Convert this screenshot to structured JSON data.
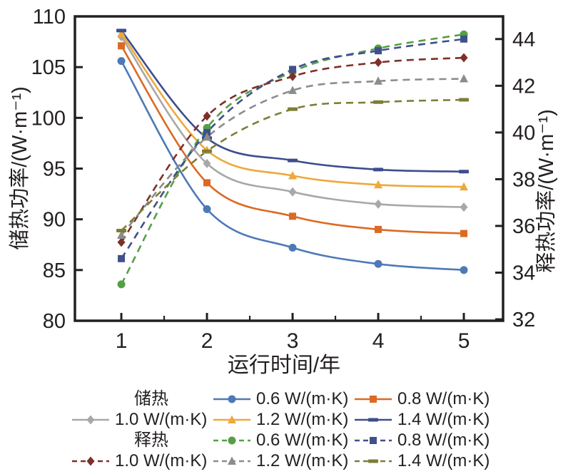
{
  "figure": {
    "background": "#ffffff",
    "axis_color": "#231f20",
    "text_color": "#231f20"
  },
  "chart_data": {
    "type": "line",
    "title": "",
    "x": [
      1,
      2,
      3,
      4,
      5
    ],
    "xlabel": "运行时间/年",
    "xlim": [
      0.458,
      5.458
    ],
    "x_ticks": [
      "1",
      "2",
      "3",
      "4",
      "5"
    ],
    "x_minor_ticks": [
      1.5,
      2.5,
      3.5,
      4.5
    ],
    "grid": false,
    "legend_position": "bottom",
    "axes": {
      "left": {
        "label": "储热功率/(W·m⁻¹)",
        "ticks": [
          80,
          85,
          90,
          95,
          100,
          105,
          110
        ],
        "lim": [
          80,
          110
        ]
      },
      "right": {
        "label": "释热功率/(W·m⁻¹)",
        "ticks": [
          32,
          34,
          36,
          38,
          40,
          42,
          44
        ],
        "lim": [
          31.94,
          44.97
        ]
      }
    },
    "groups": [
      {
        "name": "储热",
        "key": "storage",
        "axis": "left",
        "dash": false,
        "series": [
          {
            "label": "0.6 W/(m·K)",
            "color": "#4e79b7",
            "marker": "circle",
            "values": [
              105.6,
              91.0,
              87.2,
              85.6,
              85.0
            ]
          },
          {
            "label": "0.8 W/(m·K)",
            "color": "#dc6a23",
            "marker": "square",
            "values": [
              107.1,
              93.6,
              90.3,
              89.0,
              88.6
            ]
          },
          {
            "label": "1.0 W/(m·K)",
            "color": "#a8a8a8",
            "marker": "diamond",
            "values": [
              108.0,
              95.5,
              92.7,
              91.5,
              91.2
            ]
          },
          {
            "label": "1.2 W/(m·K)",
            "color": "#eda93b",
            "marker": "triangle",
            "values": [
              108.3,
              96.8,
              94.3,
              93.4,
              93.2
            ]
          },
          {
            "label": "1.4 W/(m·K)",
            "color": "#3d4d8d",
            "marker": "hbar",
            "values": [
              108.6,
              98.0,
              95.8,
              94.9,
              94.7
            ]
          }
        ]
      },
      {
        "name": "释热",
        "key": "release",
        "axis": "right",
        "dash": true,
        "series": [
          {
            "label": "0.6 W/(m·K)",
            "color": "#55a046",
            "marker": "circle",
            "values": [
              33.5,
              40.2,
              42.6,
              43.6,
              44.2
            ]
          },
          {
            "label": "0.8 W/(m·K)",
            "color": "#40508c",
            "marker": "square",
            "values": [
              34.6,
              40.0,
              42.7,
              43.5,
              44.0
            ]
          },
          {
            "label": "1.0 W/(m·K)",
            "color": "#7e2f28",
            "marker": "diamond",
            "values": [
              35.3,
              40.7,
              42.4,
              43.0,
              43.2
            ]
          },
          {
            "label": "1.2 W/(m·K)",
            "color": "#8c8c8c",
            "marker": "triangle",
            "values": [
              35.6,
              39.8,
              41.8,
              42.2,
              42.3
            ]
          },
          {
            "label": "1.4 W/(m·K)",
            "color": "#7e7d36",
            "marker": "hbar",
            "values": [
              35.8,
              39.2,
              41.0,
              41.3,
              41.4
            ]
          }
        ]
      }
    ]
  }
}
